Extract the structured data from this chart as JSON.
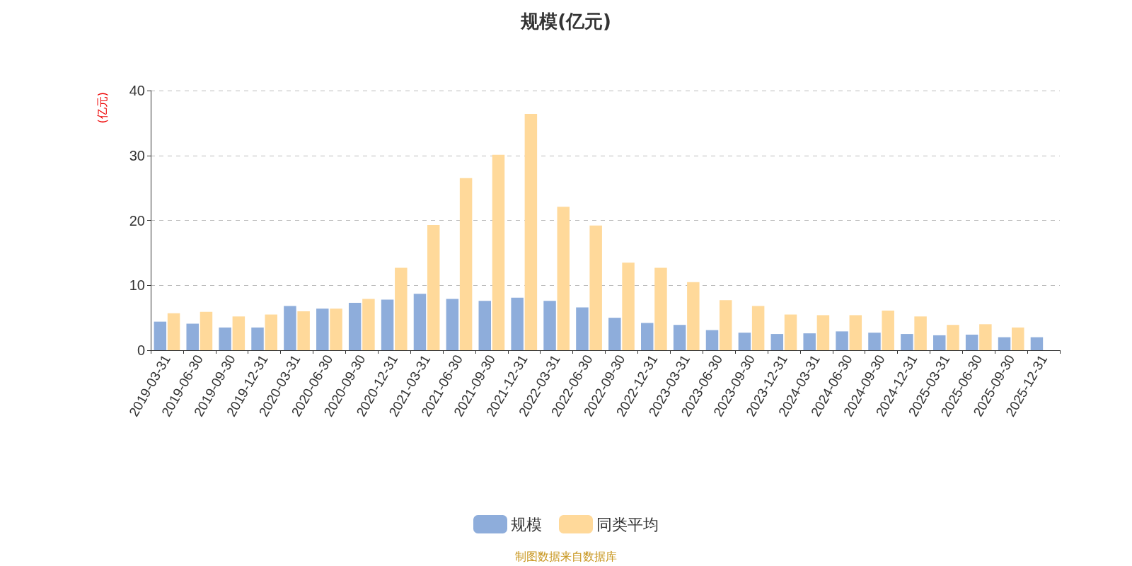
{
  "chart_data": {
    "type": "bar",
    "title": "规模(亿元)",
    "ylabel": "(亿元)",
    "categories": [
      "2019-03-31",
      "2019-06-30",
      "2019-09-30",
      "2019-12-31",
      "2020-03-31",
      "2020-06-30",
      "2020-09-30",
      "2020-12-31",
      "2021-03-31",
      "2021-06-30",
      "2021-09-30",
      "2021-12-31",
      "2022-03-31",
      "2022-06-30",
      "2022-09-30",
      "2022-12-31",
      "2023-03-31",
      "2023-06-30",
      "2023-09-30",
      "2023-12-31",
      "2024-03-31",
      "2024-06-30",
      "2024-09-30",
      "2024-12-31",
      "2025-03-31",
      "2025-06-30",
      "2025-09-30",
      "2025-12-31"
    ],
    "series": [
      {
        "name": "规模",
        "color": "#8eaddb",
        "values": [
          4.4,
          4.1,
          3.5,
          3.5,
          6.8,
          6.4,
          7.3,
          7.8,
          8.7,
          7.9,
          7.6,
          8.1,
          7.6,
          6.6,
          5.0,
          4.2,
          3.9,
          3.1,
          2.7,
          2.5,
          2.6,
          2.9,
          2.7,
          2.5,
          2.3,
          2.4,
          2.0,
          2.0
        ]
      },
      {
        "name": "同类平均",
        "color": "#ffd99a",
        "values": [
          5.7,
          5.9,
          5.2,
          5.5,
          6.0,
          6.4,
          7.9,
          12.7,
          19.3,
          26.5,
          30.1,
          36.4,
          22.1,
          19.2,
          13.5,
          12.7,
          10.5,
          7.7,
          6.8,
          5.5,
          5.4,
          5.4,
          6.1,
          5.2,
          3.9,
          4.0,
          3.5,
          null
        ]
      }
    ],
    "ylim": [
      0,
      40
    ],
    "yticks": [
      0,
      10,
      20,
      30,
      40
    ],
    "grid": "y",
    "legend": "bottom",
    "annotations": [
      "制图数据来自数据库"
    ]
  }
}
